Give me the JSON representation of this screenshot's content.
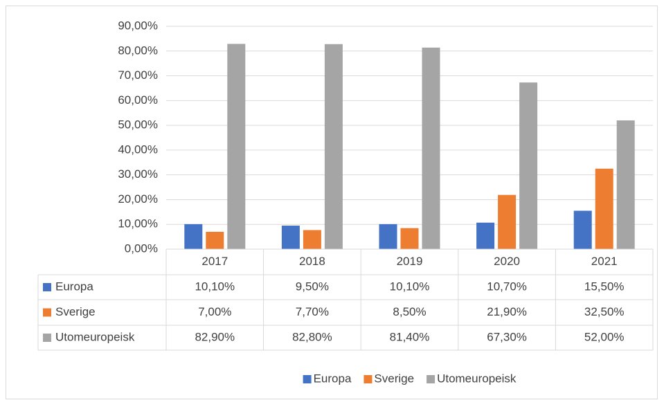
{
  "chart_data": {
    "type": "bar",
    "categories": [
      "2017",
      "2018",
      "2019",
      "2020",
      "2021"
    ],
    "series": [
      {
        "name": "Europa",
        "color": "#4472c4",
        "values": [
          10.1,
          9.5,
          10.1,
          10.7,
          15.5
        ],
        "value_labels": [
          "10,10%",
          "9,50%",
          "10,10%",
          "10,70%",
          "15,50%"
        ]
      },
      {
        "name": "Sverige",
        "color": "#ed7d31",
        "values": [
          7.0,
          7.7,
          8.5,
          21.9,
          32.5
        ],
        "value_labels": [
          "7,00%",
          "7,70%",
          "8,50%",
          "21,90%",
          "32,50%"
        ]
      },
      {
        "name": "Utomeuropeisk",
        "color": "#a5a5a5",
        "values": [
          82.9,
          82.8,
          81.4,
          67.3,
          52.0
        ],
        "value_labels": [
          "82,90%",
          "82,80%",
          "81,40%",
          "67,30%",
          "52,00%"
        ]
      }
    ],
    "ylim": [
      0,
      90
    ],
    "yticks": [
      {
        "value": 0,
        "label": "0,00%"
      },
      {
        "value": 10,
        "label": "10,00%"
      },
      {
        "value": 20,
        "label": "20,00%"
      },
      {
        "value": 30,
        "label": "30,00%"
      },
      {
        "value": 40,
        "label": "40,00%"
      },
      {
        "value": 50,
        "label": "50,00%"
      },
      {
        "value": 60,
        "label": "60,00%"
      },
      {
        "value": 70,
        "label": "70,00%"
      },
      {
        "value": 80,
        "label": "80,00%"
      },
      {
        "value": 90,
        "label": "90,00%"
      }
    ],
    "grid": true,
    "legend": "bottom"
  }
}
